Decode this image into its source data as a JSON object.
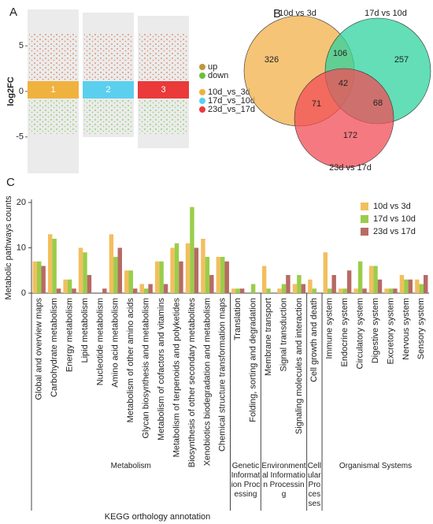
{
  "chart_data": [
    {
      "type": "scatter",
      "panel": "A",
      "ylabel": "log2FC",
      "ylim": [
        -9,
        9
      ],
      "yticks": [
        -5,
        0,
        5
      ],
      "categories": [
        "1",
        "2",
        "3"
      ],
      "series": [
        {
          "name": "up",
          "color": "#b89a3c"
        },
        {
          "name": "down",
          "color": "#6cbf3a"
        }
      ],
      "groups": [
        {
          "name": "10d_vs_3d",
          "color": "#f0b23e"
        },
        {
          "name": "17d_vs_10d",
          "color": "#5bd0ee"
        },
        {
          "name": "23d_vs_17d",
          "color": "#ea3a3a"
        }
      ]
    },
    {
      "type": "venn",
      "panel": "B",
      "sets": [
        {
          "name": "10d vs 3d",
          "color": "#f2b04a"
        },
        {
          "name": "17d vs 10d",
          "color": "#2fd39e"
        },
        {
          "name": "23d vs 17d",
          "color": "#f14c56"
        }
      ],
      "values": [
        326,
        106,
        257,
        42,
        71,
        68,
        172
      ]
    },
    {
      "type": "bar",
      "panel": "C",
      "ylabel": "Metabolic pathways counts",
      "xlabel": "KEGG orthology annotation",
      "ylim": [
        0,
        20
      ],
      "yticks": [
        0,
        10,
        20
      ],
      "groups": [
        {
          "name": "Metabolism",
          "categories": [
            "Global and overview maps",
            "Carbohydrate metabolism",
            "Energy metabolism",
            "Lipid metabolism",
            "Nucleotide metabolism",
            "Amino acid metabolism",
            "Metabolism of other amino acids",
            "Glycan biosynthesis and metabolism",
            "Metabolism of cofactors and vitamins",
            "Metabolism of terpenoids and polyketides",
            "Biosynthesis of other secondary metabolites",
            "Xenobiotics biodegradation and metabolism",
            "Chemical structure transformation maps"
          ]
        },
        {
          "name": "Genetic Information Processing",
          "categories": [
            "Translation",
            "Folding, sorting and degradation"
          ]
        },
        {
          "name": "Environmental Information Processing",
          "categories": [
            "Membrane transport",
            "Signal transduction",
            "Signaling molecules and interaction"
          ]
        },
        {
          "name": "Cellular Processes",
          "categories": [
            "Cell growth and death"
          ]
        },
        {
          "name": "Organismal Systems",
          "categories": [
            "Immune system",
            "Endocrine system",
            "Circulatory system",
            "Digestive system",
            "Excretory system",
            "Nervous system",
            "Sensory system"
          ]
        }
      ],
      "series": [
        {
          "name": "10d vs 3d",
          "color": "#f2bf5e",
          "values": [
            7,
            13,
            3,
            10,
            0,
            13,
            5,
            2,
            7,
            10,
            11,
            12,
            8,
            1,
            0,
            6,
            1,
            2,
            3,
            9,
            1,
            1,
            6,
            1,
            4,
            3
          ]
        },
        {
          "name": "17d vs 10d",
          "color": "#9acd4a",
          "values": [
            7,
            12,
            3,
            9,
            0,
            8,
            5,
            1,
            7,
            11,
            19,
            8,
            8,
            1,
            2,
            1,
            2,
            4,
            1,
            1,
            1,
            7,
            6,
            1,
            3,
            2
          ]
        },
        {
          "name": "23d vs 17d",
          "color": "#b86a64",
          "values": [
            6,
            1,
            1,
            4,
            1,
            10,
            1,
            2,
            2,
            7,
            10,
            4,
            7,
            1,
            0,
            0,
            4,
            2,
            0,
            4,
            5,
            1,
            3,
            1,
            3,
            4
          ]
        }
      ]
    }
  ],
  "panels": [
    "A",
    "B",
    "C"
  ]
}
